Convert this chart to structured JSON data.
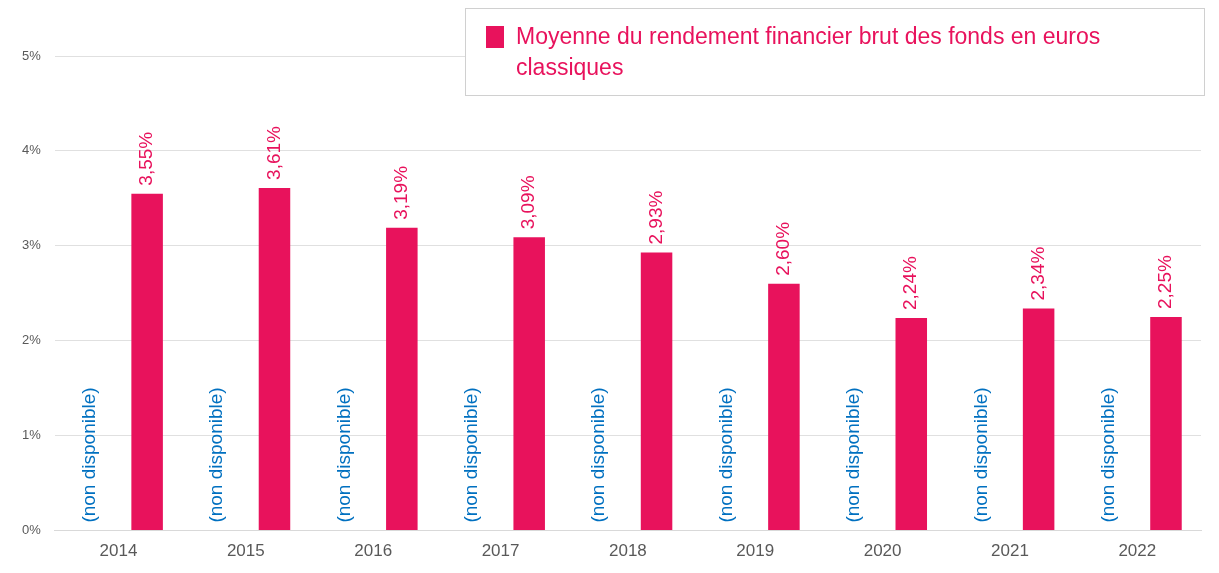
{
  "chart_data": {
    "type": "bar",
    "categories": [
      "2014",
      "2015",
      "2016",
      "2017",
      "2018",
      "2019",
      "2020",
      "2021",
      "2022"
    ],
    "series": [
      {
        "color": "#0070c0",
        "values": [
          null,
          null,
          null,
          null,
          null,
          null,
          null,
          null,
          null
        ],
        "value_labels": [
          "(non disponible)",
          "(non disponible)",
          "(non disponible)",
          "(non disponible)",
          "(non disponible)",
          "(non disponible)",
          "(non disponible)",
          "(non disponible)",
          "(non disponible)"
        ]
      },
      {
        "name": "Moyenne du rendement financier brut des fonds en euros classiques",
        "color": "#e8125c",
        "values": [
          3.55,
          3.61,
          3.19,
          3.09,
          2.93,
          2.6,
          2.24,
          2.34,
          2.25
        ],
        "value_labels": [
          "3,55%",
          "3,61%",
          "3,19%",
          "3,09%",
          "2,93%",
          "2,60%",
          "2,24%",
          "2,34%",
          "2,25%"
        ]
      }
    ],
    "ylim": [
      0,
      5
    ],
    "yticks": [
      {
        "value": 0,
        "label": "0%"
      },
      {
        "value": 1,
        "label": "1%"
      },
      {
        "value": 2,
        "label": "2%"
      },
      {
        "value": 3,
        "label": "3%"
      },
      {
        "value": 4,
        "label": "4%"
      },
      {
        "value": 5,
        "label": "5%"
      }
    ],
    "grid": "y",
    "legend": "top right"
  }
}
